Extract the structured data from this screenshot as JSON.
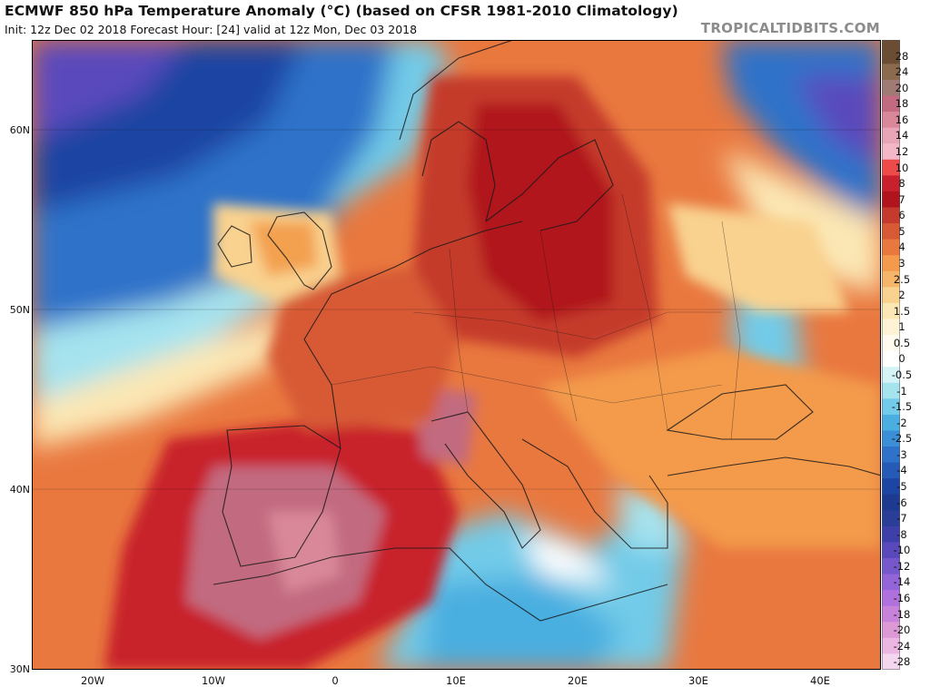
{
  "header": {
    "title": "ECMWF 850 hPa Temperature Anomaly (°C) (based on CFSR 1981-2010 Climatology)",
    "subtitle": "Init: 12z Dec 02 2018   Forecast Hour: [24]   valid at 12z Mon, Dec 03 2018",
    "source": "TROPICALTIDBITS.COM"
  },
  "map": {
    "latitude_labels": [
      "60N",
      "50N",
      "40N",
      "30N"
    ],
    "longitude_labels": [
      "20W",
      "10W",
      "0",
      "10E",
      "20E",
      "30E",
      "40E"
    ],
    "extent": {
      "lon_min": -25,
      "lon_max": 45,
      "lat_min": 30,
      "lat_max": 65
    }
  },
  "colorbar": {
    "labels": [
      "28",
      "24",
      "20",
      "18",
      "16",
      "14",
      "12",
      "10",
      "8",
      "7",
      "6",
      "5",
      "4",
      "3",
      "2.5",
      "2",
      "1.5",
      "1",
      "0.5",
      "0",
      "-0.5",
      "-1",
      "-1.5",
      "-2",
      "-2.5",
      "-3",
      "-4",
      "-5",
      "-6",
      "-7",
      "-8",
      "-10",
      "-12",
      "-14",
      "-16",
      "-18",
      "-20",
      "-24",
      "-28"
    ],
    "colors": [
      "#6b4d33",
      "#8b6a4d",
      "#a07a75",
      "#c26b80",
      "#d9889a",
      "#e8a5b8",
      "#f2b8c8",
      "#ef4a4a",
      "#c8202c",
      "#b0151e",
      "#c43a2c",
      "#d75a35",
      "#e9783f",
      "#f39a4c",
      "#f6b66a",
      "#f9d28f",
      "#fbe7b4",
      "#fff3d6",
      "#fffbee",
      "#ffffff",
      "#d6f4f7",
      "#a5e3ef",
      "#72cbe8",
      "#4aaee0",
      "#3b8fd6",
      "#2e72c9",
      "#255ab7",
      "#1d45a3",
      "#1c3a8f",
      "#2a3d97",
      "#3f3faa",
      "#5a48bd",
      "#7657cc",
      "#9365d8",
      "#b070dd",
      "#c982d9",
      "#dd98d6",
      "#ebb6e2",
      "#f4d6ef"
    ]
  }
}
